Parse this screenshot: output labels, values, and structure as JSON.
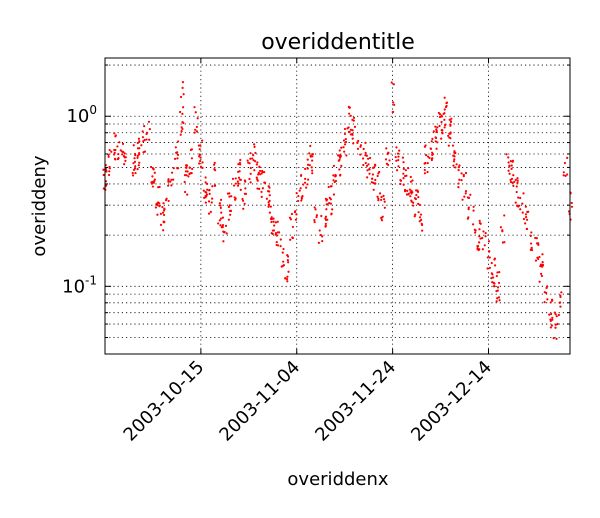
{
  "chart_data": {
    "type": "scatter",
    "title": "overiddentitle",
    "xlabel": "overiddenx",
    "ylabel": "overiddeny",
    "xlim": [
      "2003-09-25",
      "2003-12-31"
    ],
    "ylim": [
      0.04,
      2.2
    ],
    "yscale": "log",
    "grid": true,
    "x_ticks": [
      "2003-10-15",
      "2003-11-04",
      "2003-11-24",
      "2003-12-14"
    ],
    "y_ticks": [
      {
        "label": "10",
        "sup": "-1"
      },
      {
        "label": "10",
        "sup": "0"
      }
    ],
    "marker": ".",
    "color": "#ff0000",
    "series": [
      {
        "points": [
          [
            "2003-09-25",
            0.42
          ],
          [
            "2003-09-26",
            0.52
          ],
          [
            "2003-09-27",
            0.66
          ],
          [
            "2003-09-28",
            0.62
          ],
          [
            "2003-09-29",
            0.57
          ],
          [
            "2003-10-01",
            0.55
          ],
          [
            "2003-10-02",
            0.6
          ],
          [
            "2003-10-03",
            0.72
          ],
          [
            "2003-10-04",
            0.85
          ],
          [
            "2003-10-05",
            0.45
          ],
          [
            "2003-10-06",
            0.32
          ],
          [
            "2003-10-07",
            0.26
          ],
          [
            "2003-10-08",
            0.36
          ],
          [
            "2003-10-09",
            0.47
          ],
          [
            "2003-10-10",
            0.58
          ],
          [
            "2003-10-11",
            0.85
          ],
          [
            "2003-10-11",
            1.3
          ],
          [
            "2003-10-12",
            0.42
          ],
          [
            "2003-10-13",
            0.55
          ],
          [
            "2003-10-14",
            0.98
          ],
          [
            "2003-10-15",
            0.6
          ],
          [
            "2003-10-16",
            0.36
          ],
          [
            "2003-10-17",
            0.32
          ],
          [
            "2003-10-18",
            0.44
          ],
          [
            "2003-10-19",
            0.27
          ],
          [
            "2003-10-20",
            0.22
          ],
          [
            "2003-10-21",
            0.3
          ],
          [
            "2003-10-22",
            0.38
          ],
          [
            "2003-10-23",
            0.45
          ],
          [
            "2003-10-24",
            0.35
          ],
          [
            "2003-10-25",
            0.5
          ],
          [
            "2003-10-26",
            0.56
          ],
          [
            "2003-10-27",
            0.45
          ],
          [
            "2003-10-28",
            0.4
          ],
          [
            "2003-10-29",
            0.33
          ],
          [
            "2003-10-30",
            0.25
          ],
          [
            "2003-10-31",
            0.2
          ],
          [
            "2003-11-01",
            0.16
          ],
          [
            "2003-11-02",
            0.13
          ],
          [
            "2003-11-03",
            0.23
          ],
          [
            "2003-11-04",
            0.3
          ],
          [
            "2003-11-05",
            0.37
          ],
          [
            "2003-11-06",
            0.46
          ],
          [
            "2003-11-07",
            0.56
          ],
          [
            "2003-11-08",
            0.28
          ],
          [
            "2003-11-09",
            0.22
          ],
          [
            "2003-11-10",
            0.27
          ],
          [
            "2003-11-11",
            0.32
          ],
          [
            "2003-11-12",
            0.42
          ],
          [
            "2003-11-13",
            0.55
          ],
          [
            "2003-11-14",
            0.7
          ],
          [
            "2003-11-15",
            0.95
          ],
          [
            "2003-11-16",
            0.82
          ],
          [
            "2003-11-17",
            0.65
          ],
          [
            "2003-11-18",
            0.58
          ],
          [
            "2003-11-19",
            0.5
          ],
          [
            "2003-11-20",
            0.44
          ],
          [
            "2003-11-21",
            0.39
          ],
          [
            "2003-11-22",
            0.3
          ],
          [
            "2003-11-23",
            0.6
          ],
          [
            "2003-11-24",
            1.3
          ],
          [
            "2003-11-25",
            0.55
          ],
          [
            "2003-11-26",
            0.48
          ],
          [
            "2003-11-27",
            0.42
          ],
          [
            "2003-11-28",
            0.36
          ],
          [
            "2003-11-29",
            0.3
          ],
          [
            "2003-11-30",
            0.25
          ],
          [
            "2003-12-01",
            0.55
          ],
          [
            "2003-12-02",
            0.68
          ],
          [
            "2003-12-03",
            0.75
          ],
          [
            "2003-12-04",
            0.9
          ],
          [
            "2003-12-05",
            1.05
          ],
          [
            "2003-12-06",
            0.82
          ],
          [
            "2003-12-07",
            0.55
          ],
          [
            "2003-12-08",
            0.45
          ],
          [
            "2003-12-09",
            0.38
          ],
          [
            "2003-12-10",
            0.3
          ],
          [
            "2003-12-11",
            0.25
          ],
          [
            "2003-12-12",
            0.2
          ],
          [
            "2003-12-13",
            0.18
          ],
          [
            "2003-12-14",
            0.15
          ],
          [
            "2003-12-15",
            0.12
          ],
          [
            "2003-12-16",
            0.1
          ],
          [
            "2003-12-17",
            0.22
          ],
          [
            "2003-12-18",
            0.5
          ],
          [
            "2003-12-19",
            0.45
          ],
          [
            "2003-12-20",
            0.36
          ],
          [
            "2003-12-21",
            0.3
          ],
          [
            "2003-12-22",
            0.25
          ],
          [
            "2003-12-23",
            0.2
          ],
          [
            "2003-12-24",
            0.16
          ],
          [
            "2003-12-25",
            0.13
          ],
          [
            "2003-12-26",
            0.09
          ],
          [
            "2003-12-27",
            0.07
          ],
          [
            "2003-12-28",
            0.06
          ],
          [
            "2003-12-29",
            0.08
          ],
          [
            "2003-12-30",
            0.5
          ],
          [
            "2003-12-31",
            0.3
          ]
        ]
      }
    ]
  }
}
